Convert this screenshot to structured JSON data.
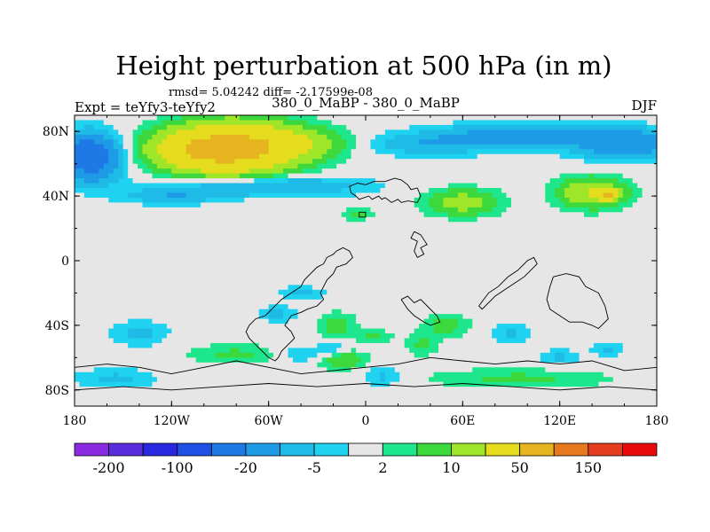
{
  "chart_data": {
    "type": "heatmap",
    "title": "Height perturbation at 500 hPa (in m)",
    "stats_line": "rmsd= 5.04242 diff= -2.17599e-08",
    "left_label": "Expt = teYfy3-teYfy2",
    "center_label": "380_0_MaBP - 380_0_MaBP",
    "right_label": "DJF",
    "xlim": [
      -180,
      180
    ],
    "ylim": [
      -90,
      90
    ],
    "x_ticks": [
      {
        "value": -180,
        "label": "180"
      },
      {
        "value": -120,
        "label": "120W"
      },
      {
        "value": -60,
        "label": "60W"
      },
      {
        "value": 0,
        "label": "0"
      },
      {
        "value": 60,
        "label": "60E"
      },
      {
        "value": 120,
        "label": "120E"
      },
      {
        "value": 180,
        "label": "180"
      }
    ],
    "y_ticks": [
      {
        "value": 80,
        "label": "80N"
      },
      {
        "value": 40,
        "label": "40N"
      },
      {
        "value": 0,
        "label": "0"
      },
      {
        "value": -40,
        "label": "40S"
      },
      {
        "value": -80,
        "label": "80S"
      }
    ],
    "levels": [
      -200,
      -150,
      -100,
      -50,
      -20,
      -10,
      -5,
      -2,
      2,
      5,
      10,
      20,
      50,
      100,
      150,
      200
    ],
    "colorbar_labels": [
      "-200",
      "-100",
      "-20",
      "-5",
      "2",
      "10",
      "50",
      "150"
    ],
    "colors": [
      "#8a2be2",
      "#5a2ddc",
      "#2828e0",
      "#1e50e6",
      "#1e78e6",
      "#1e9be6",
      "#1ebbe6",
      "#1ed2f0",
      "#e6e6e6",
      "#1ee68c",
      "#3cd83c",
      "#a0e628",
      "#e6dc1e",
      "#e6b41e",
      "#e6781e",
      "#e63c1e",
      "#e60a0a"
    ],
    "anomalies": [
      {
        "lon": -170,
        "lat": 64,
        "rlon": 18,
        "rlat": 14,
        "amp": -30
      },
      {
        "lon": -175,
        "lat": 66,
        "rlon": 7,
        "rlat": 6,
        "amp": -20
      },
      {
        "lon": -80,
        "lat": 70,
        "rlon": 38,
        "rlat": 14,
        "amp": 55
      },
      {
        "lon": -100,
        "lat": 68,
        "rlon": 30,
        "rlat": 11,
        "amp": 25
      },
      {
        "lon": -40,
        "lat": 73,
        "rlon": 30,
        "rlat": 8,
        "amp": 10
      },
      {
        "lon": -60,
        "lat": 46,
        "rlon": 55,
        "rlat": 6,
        "amp": -12
      },
      {
        "lon": -120,
        "lat": 40,
        "rlon": 30,
        "rlat": 5,
        "amp": -9
      },
      {
        "lon": 40,
        "lat": 72,
        "rlon": 40,
        "rlat": 7,
        "amp": -9
      },
      {
        "lon": 100,
        "lat": 78,
        "rlon": 50,
        "rlat": 7,
        "amp": -14
      },
      {
        "lon": 160,
        "lat": 72,
        "rlon": 30,
        "rlat": 9,
        "amp": -18
      },
      {
        "lon": 60,
        "lat": 36,
        "rlon": 22,
        "rlat": 8,
        "amp": 14
      },
      {
        "lon": 140,
        "lat": 42,
        "rlon": 20,
        "rlat": 9,
        "amp": 20
      },
      {
        "lon": 150,
        "lat": 41,
        "rlon": 6,
        "rlat": 3,
        "amp": 40
      },
      {
        "lon": -5,
        "lat": 29,
        "rlon": 10,
        "rlat": 4,
        "amp": 6
      },
      {
        "lon": -40,
        "lat": -20,
        "rlon": 14,
        "rlat": 4,
        "amp": -6
      },
      {
        "lon": -55,
        "lat": -33,
        "rlon": 12,
        "rlat": 5,
        "amp": -6
      },
      {
        "lon": -18,
        "lat": -40,
        "rlon": 12,
        "rlat": 8,
        "amp": 7
      },
      {
        "lon": -140,
        "lat": -45,
        "rlon": 18,
        "rlat": 8,
        "amp": -6
      },
      {
        "lon": -20,
        "lat": -55,
        "rlon": 10,
        "rlat": 5,
        "amp": -6
      },
      {
        "lon": 5,
        "lat": -47,
        "rlon": 12,
        "rlat": 4,
        "amp": 6
      },
      {
        "lon": -80,
        "lat": -58,
        "rlon": 30,
        "rlat": 6,
        "amp": 6
      },
      {
        "lon": -40,
        "lat": -58,
        "rlon": 15,
        "rlat": 5,
        "amp": -6
      },
      {
        "lon": -15,
        "lat": -61,
        "rlon": 14,
        "rlat": 6,
        "amp": 10
      },
      {
        "lon": 50,
        "lat": -40,
        "rlon": 14,
        "rlat": 7,
        "amp": 7
      },
      {
        "lon": 35,
        "lat": -52,
        "rlon": 10,
        "rlat": 7,
        "amp": 6
      },
      {
        "lon": 90,
        "lat": -45,
        "rlon": 12,
        "rlat": 6,
        "amp": -6
      },
      {
        "lon": 150,
        "lat": -55,
        "rlon": 10,
        "rlat": 4,
        "amp": -6
      },
      {
        "lon": 120,
        "lat": -60,
        "rlon": 12,
        "rlat": 5,
        "amp": -6
      },
      {
        "lon": 10,
        "lat": -72,
        "rlon": 12,
        "rlat": 6,
        "amp": -6
      },
      {
        "lon": 95,
        "lat": -73,
        "rlon": 55,
        "rlat": 6,
        "amp": 6
      },
      {
        "lon": -155,
        "lat": -73,
        "rlon": 25,
        "rlat": 6,
        "amp": -6
      }
    ],
    "coastlines": [
      {
        "name": "continent-north",
        "points": [
          [
            -10,
            46
          ],
          [
            -5,
            48
          ],
          [
            0,
            47
          ],
          [
            5,
            49
          ],
          [
            12,
            49
          ],
          [
            18,
            51
          ],
          [
            22,
            50
          ],
          [
            26,
            47
          ],
          [
            28,
            44
          ],
          [
            32,
            45
          ],
          [
            34,
            40
          ],
          [
            32,
            36
          ],
          [
            26,
            37
          ],
          [
            22,
            36
          ],
          [
            20,
            38
          ],
          [
            16,
            36
          ],
          [
            12,
            39
          ],
          [
            10,
            38
          ],
          [
            8,
            40
          ],
          [
            4,
            38
          ],
          [
            2,
            40
          ],
          [
            -4,
            38
          ],
          [
            -6,
            40
          ],
          [
            -9,
            42
          ],
          [
            -10,
            46
          ]
        ]
      },
      {
        "name": "island-north-a",
        "points": [
          [
            -4,
            30
          ],
          [
            0,
            30
          ],
          [
            0,
            27
          ],
          [
            -4,
            27
          ],
          [
            -4,
            30
          ]
        ]
      },
      {
        "name": "island-north-b",
        "points": [
          [
            30,
            18
          ],
          [
            34,
            16
          ],
          [
            38,
            10
          ],
          [
            34,
            8
          ],
          [
            36,
            4
          ],
          [
            32,
            2
          ],
          [
            30,
            6
          ],
          [
            32,
            12
          ],
          [
            28,
            14
          ],
          [
            30,
            18
          ]
        ]
      },
      {
        "name": "continent-west",
        "points": [
          [
            -18,
            6
          ],
          [
            -14,
            8
          ],
          [
            -10,
            6
          ],
          [
            -8,
            2
          ],
          [
            -12,
            -2
          ],
          [
            -18,
            -4
          ],
          [
            -20,
            -8
          ],
          [
            -24,
            -12
          ],
          [
            -26,
            -16
          ],
          [
            -28,
            -20
          ],
          [
            -26,
            -24
          ],
          [
            -30,
            -28
          ],
          [
            -36,
            -30
          ],
          [
            -40,
            -32
          ],
          [
            -46,
            -34
          ],
          [
            -50,
            -40
          ],
          [
            -46,
            -44
          ],
          [
            -44,
            -48
          ],
          [
            -48,
            -52
          ],
          [
            -52,
            -56
          ],
          [
            -54,
            -60
          ],
          [
            -56,
            -62
          ],
          [
            -60,
            -60
          ],
          [
            -64,
            -56
          ],
          [
            -68,
            -52
          ],
          [
            -72,
            -48
          ],
          [
            -74,
            -44
          ],
          [
            -72,
            -40
          ],
          [
            -68,
            -36
          ],
          [
            -62,
            -34
          ],
          [
            -58,
            -30
          ],
          [
            -52,
            -24
          ],
          [
            -46,
            -20
          ],
          [
            -40,
            -16
          ],
          [
            -38,
            -12
          ],
          [
            -34,
            -8
          ],
          [
            -30,
            -4
          ],
          [
            -26,
            -2
          ],
          [
            -24,
            2
          ],
          [
            -20,
            4
          ],
          [
            -18,
            6
          ]
        ]
      },
      {
        "name": "continent-east-a",
        "points": [
          [
            22,
            -24
          ],
          [
            26,
            -22
          ],
          [
            30,
            -26
          ],
          [
            34,
            -24
          ],
          [
            38,
            -28
          ],
          [
            44,
            -34
          ],
          [
            46,
            -38
          ],
          [
            40,
            -40
          ],
          [
            36,
            -38
          ],
          [
            30,
            -34
          ],
          [
            26,
            -30
          ],
          [
            22,
            -24
          ]
        ]
      },
      {
        "name": "continent-east-b",
        "points": [
          [
            70,
            -28
          ],
          [
            76,
            -20
          ],
          [
            82,
            -16
          ],
          [
            88,
            -10
          ],
          [
            94,
            -6
          ],
          [
            100,
            0
          ],
          [
            104,
            2
          ],
          [
            106,
            -2
          ],
          [
            102,
            -6
          ],
          [
            98,
            -10
          ],
          [
            92,
            -14
          ],
          [
            86,
            -18
          ],
          [
            80,
            -22
          ],
          [
            76,
            -26
          ],
          [
            72,
            -30
          ],
          [
            70,
            -28
          ]
        ]
      },
      {
        "name": "continent-east-c",
        "points": [
          [
            116,
            -10
          ],
          [
            124,
            -8
          ],
          [
            132,
            -10
          ],
          [
            136,
            -16
          ],
          [
            144,
            -20
          ],
          [
            148,
            -28
          ],
          [
            150,
            -36
          ],
          [
            144,
            -42
          ],
          [
            140,
            -40
          ],
          [
            134,
            -38
          ],
          [
            126,
            -38
          ],
          [
            120,
            -34
          ],
          [
            114,
            -30
          ],
          [
            112,
            -24
          ],
          [
            114,
            -16
          ],
          [
            116,
            -10
          ]
        ]
      },
      {
        "name": "antarctic-edge",
        "points": [
          [
            -180,
            -66
          ],
          [
            -160,
            -64
          ],
          [
            -140,
            -66
          ],
          [
            -120,
            -70
          ],
          [
            -100,
            -66
          ],
          [
            -80,
            -62
          ],
          [
            -60,
            -66
          ],
          [
            -40,
            -70
          ],
          [
            -20,
            -68
          ],
          [
            0,
            -66
          ],
          [
            20,
            -64
          ],
          [
            40,
            -60
          ],
          [
            60,
            -62
          ],
          [
            80,
            -64
          ],
          [
            100,
            -62
          ],
          [
            120,
            -64
          ],
          [
            140,
            -62
          ],
          [
            160,
            -68
          ],
          [
            180,
            -66
          ]
        ]
      },
      {
        "name": "antarctic-inner",
        "points": [
          [
            -180,
            -80
          ],
          [
            -150,
            -78
          ],
          [
            -120,
            -80
          ],
          [
            -90,
            -78
          ],
          [
            -60,
            -76
          ],
          [
            -30,
            -78
          ],
          [
            0,
            -76
          ],
          [
            30,
            -78
          ],
          [
            60,
            -76
          ],
          [
            90,
            -78
          ],
          [
            120,
            -80
          ],
          [
            150,
            -78
          ],
          [
            180,
            -80
          ]
        ]
      }
    ]
  }
}
